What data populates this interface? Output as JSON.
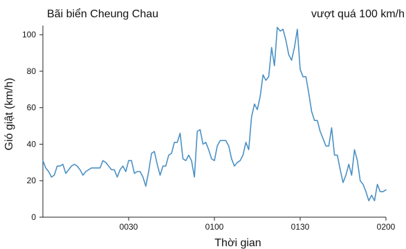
{
  "chart_data": {
    "type": "line",
    "title": "Bãi biển Cheung Chau",
    "annotation": "vượt quá 100 km/h",
    "xlabel": "Thời gian",
    "ylabel": "Gió giật (km/h)",
    "x_unit": "minutes since 00:00",
    "xlim": [
      0,
      120
    ],
    "ylim": [
      0,
      105
    ],
    "x_ticks": [
      {
        "value": 30,
        "label": "0030"
      },
      {
        "value": 60,
        "label": "0100"
      },
      {
        "value": 90,
        "label": "0130"
      },
      {
        "value": 120,
        "label": "0200"
      }
    ],
    "y_ticks": [
      0,
      20,
      40,
      60,
      80,
      100
    ],
    "grid": false,
    "line_color": "#4a90c4",
    "series": [
      {
        "name": "",
        "values": [
          [
            0,
            31
          ],
          [
            1,
            27
          ],
          [
            2,
            25
          ],
          [
            3,
            22
          ],
          [
            4,
            23
          ],
          [
            5,
            28
          ],
          [
            6,
            28
          ],
          [
            7,
            29
          ],
          [
            8,
            24
          ],
          [
            9,
            26
          ],
          [
            10,
            28
          ],
          [
            11,
            29
          ],
          [
            12,
            28
          ],
          [
            13,
            26
          ],
          [
            14,
            23
          ],
          [
            15,
            25
          ],
          [
            16,
            26
          ],
          [
            17,
            27
          ],
          [
            18,
            27
          ],
          [
            19,
            27
          ],
          [
            20,
            27
          ],
          [
            21,
            31
          ],
          [
            22,
            30
          ],
          [
            23,
            28
          ],
          [
            24,
            26
          ],
          [
            25,
            26
          ],
          [
            26,
            22
          ],
          [
            27,
            26
          ],
          [
            28,
            28
          ],
          [
            29,
            25
          ],
          [
            30,
            31
          ],
          [
            31,
            31
          ],
          [
            32,
            24
          ],
          [
            33,
            25
          ],
          [
            34,
            25
          ],
          [
            35,
            22
          ],
          [
            36,
            17
          ],
          [
            37,
            25
          ],
          [
            38,
            35
          ],
          [
            39,
            36
          ],
          [
            40,
            29
          ],
          [
            41,
            23
          ],
          [
            42,
            28
          ],
          [
            43,
            28
          ],
          [
            44,
            34
          ],
          [
            45,
            35
          ],
          [
            46,
            41
          ],
          [
            47,
            41
          ],
          [
            48,
            46
          ],
          [
            49,
            32
          ],
          [
            50,
            31
          ],
          [
            51,
            34
          ],
          [
            52,
            31
          ],
          [
            53,
            22
          ],
          [
            54,
            47
          ],
          [
            55,
            48
          ],
          [
            56,
            40
          ],
          [
            57,
            41
          ],
          [
            58,
            37
          ],
          [
            59,
            32
          ],
          [
            60,
            31
          ],
          [
            61,
            39
          ],
          [
            62,
            42
          ],
          [
            63,
            42
          ],
          [
            64,
            42
          ],
          [
            65,
            39
          ],
          [
            66,
            32
          ],
          [
            67,
            28
          ],
          [
            68,
            30
          ],
          [
            69,
            31
          ],
          [
            70,
            34
          ],
          [
            71,
            41
          ],
          [
            72,
            37
          ],
          [
            73,
            55
          ],
          [
            74,
            62
          ],
          [
            75,
            59
          ],
          [
            76,
            66
          ],
          [
            77,
            78
          ],
          [
            78,
            75
          ],
          [
            79,
            77
          ],
          [
            80,
            93
          ],
          [
            81,
            83
          ],
          [
            82,
            104
          ],
          [
            83,
            102
          ],
          [
            84,
            103
          ],
          [
            85,
            97
          ],
          [
            86,
            89
          ],
          [
            87,
            86
          ],
          [
            88,
            93
          ],
          [
            89,
            103
          ],
          [
            90,
            81
          ],
          [
            91,
            77
          ],
          [
            92,
            77
          ],
          [
            93,
            68
          ],
          [
            94,
            58
          ],
          [
            95,
            53
          ],
          [
            96,
            53
          ],
          [
            97,
            47
          ],
          [
            98,
            43
          ],
          [
            99,
            39
          ],
          [
            100,
            39
          ],
          [
            101,
            49
          ],
          [
            102,
            34
          ],
          [
            103,
            34
          ],
          [
            104,
            26
          ],
          [
            105,
            19
          ],
          [
            106,
            23
          ],
          [
            107,
            29
          ],
          [
            108,
            23
          ],
          [
            109,
            37
          ],
          [
            110,
            31
          ],
          [
            111,
            20
          ],
          [
            112,
            18
          ],
          [
            113,
            14
          ],
          [
            114,
            9
          ],
          [
            115,
            12
          ],
          [
            116,
            9
          ],
          [
            117,
            18
          ],
          [
            118,
            14
          ],
          [
            119,
            14
          ],
          [
            120,
            15
          ]
        ]
      }
    ]
  }
}
